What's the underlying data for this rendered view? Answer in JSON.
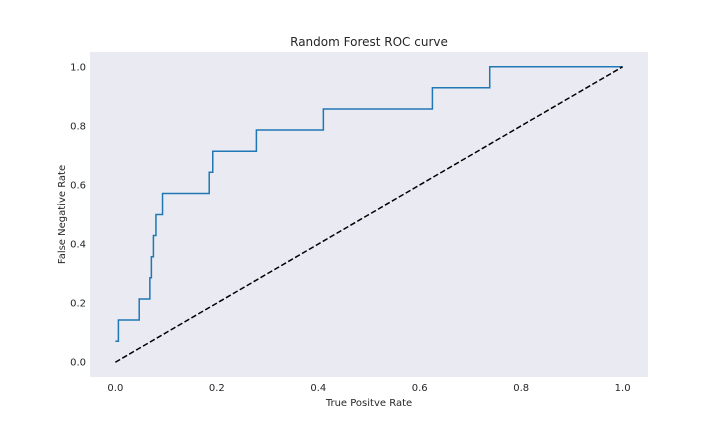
{
  "chart_data": {
    "type": "line",
    "title": "Random Forest ROC curve",
    "xlabel": "True Positve Rate",
    "ylabel": "False Negative Rate",
    "xlim": [
      -0.05,
      1.05
    ],
    "ylim": [
      -0.05,
      1.05
    ],
    "xticks": [
      0.0,
      0.2,
      0.4,
      0.6,
      0.8,
      1.0
    ],
    "yticks": [
      0.0,
      0.2,
      0.4,
      0.6,
      0.8,
      1.0
    ],
    "xtick_labels": [
      "0.0",
      "0.2",
      "0.4",
      "0.6",
      "0.8",
      "1.0"
    ],
    "ytick_labels": [
      "0.0",
      "0.2",
      "0.4",
      "0.6",
      "0.8",
      "1.0"
    ],
    "grid": false,
    "background": "#eaeaf2",
    "series": [
      {
        "style": "step",
        "color": "#1f77b4",
        "x": [
          0.0,
          0.006,
          0.006,
          0.047,
          0.047,
          0.068,
          0.068,
          0.071,
          0.071,
          0.075,
          0.075,
          0.08,
          0.08,
          0.093,
          0.093,
          0.185,
          0.185,
          0.192,
          0.192,
          0.278,
          0.278,
          0.41,
          0.41,
          0.625,
          0.625,
          0.738,
          0.738,
          1.0
        ],
        "y": [
          0.071,
          0.071,
          0.143,
          0.143,
          0.214,
          0.214,
          0.286,
          0.286,
          0.357,
          0.357,
          0.429,
          0.429,
          0.5,
          0.5,
          0.571,
          0.571,
          0.643,
          0.643,
          0.714,
          0.714,
          0.786,
          0.786,
          0.857,
          0.857,
          0.929,
          0.929,
          1.0,
          1.0
        ]
      },
      {
        "style": "dashed",
        "color": "#000000",
        "x": [
          0.0,
          1.0
        ],
        "y": [
          0.0,
          1.0
        ]
      }
    ]
  }
}
